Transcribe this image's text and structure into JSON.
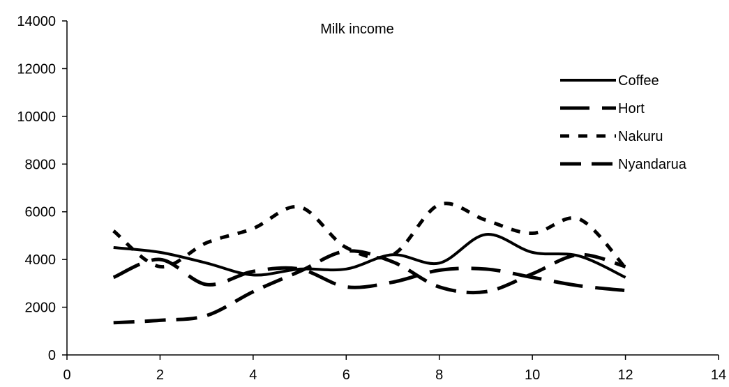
{
  "chart_data": {
    "type": "line",
    "title": "Milk income",
    "xlabel": "",
    "ylabel": "",
    "xlim": [
      0,
      14
    ],
    "ylim": [
      0,
      14000
    ],
    "xticks": [
      0,
      2,
      4,
      6,
      8,
      10,
      12,
      14
    ],
    "yticks": [
      0,
      2000,
      4000,
      6000,
      8000,
      10000,
      12000,
      14000
    ],
    "grid": false,
    "legend_position": "top-right",
    "series": [
      {
        "name": "Coffee",
        "style": "solid",
        "color": "#000000",
        "x": [
          1,
          2,
          3,
          4,
          5,
          6,
          7,
          8,
          9,
          10,
          11,
          12
        ],
        "y": [
          4500,
          4300,
          3850,
          3350,
          3600,
          3600,
          4200,
          3850,
          5050,
          4300,
          4150,
          3250
        ]
      },
      {
        "name": "Hort",
        "style": "long-dash",
        "color": "#000000",
        "x": [
          1,
          2,
          3,
          4,
          5,
          6,
          7,
          8,
          9,
          10,
          11,
          12
        ],
        "y": [
          3250,
          4000,
          2950,
          3500,
          3600,
          2850,
          3050,
          3550,
          3600,
          3250,
          2900,
          2700
        ]
      },
      {
        "name": "Nakuru",
        "style": "short-dash",
        "color": "#000000",
        "x": [
          1,
          2,
          3,
          4,
          5,
          6,
          7,
          8,
          9,
          10,
          11,
          12
        ],
        "y": [
          5200,
          3700,
          4700,
          5300,
          6200,
          4500,
          4200,
          6300,
          5650,
          5100,
          5700,
          3650
        ]
      },
      {
        "name": "Nyandarua",
        "style": "dash",
        "color": "#000000",
        "x": [
          1,
          2,
          3,
          4,
          5,
          6,
          7,
          8,
          9,
          10,
          11,
          12
        ],
        "y": [
          1350,
          1450,
          1650,
          2650,
          3500,
          4350,
          3900,
          2850,
          2650,
          3400,
          4200,
          3700
        ]
      }
    ]
  }
}
